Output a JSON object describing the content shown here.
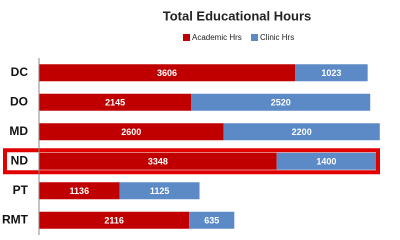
{
  "chart_data": {
    "type": "stacked-bar-horizontal",
    "title": "Total Educational Hours",
    "categories": [
      "DC",
      "DO",
      "MD",
      "ND",
      "PT",
      "RMT"
    ],
    "series": [
      {
        "name": "Academic Hrs",
        "color": "#c00000",
        "values": [
          3606,
          2145,
          2600,
          3348,
          1136,
          2116
        ]
      },
      {
        "name": "Clinic Hrs",
        "color": "#5b8ac6",
        "values": [
          1023,
          2520,
          2200,
          1400,
          1125,
          635
        ]
      }
    ],
    "xlim": [
      0,
      5000
    ],
    "highlight_category": "ND",
    "highlight_color": "#e00000"
  }
}
